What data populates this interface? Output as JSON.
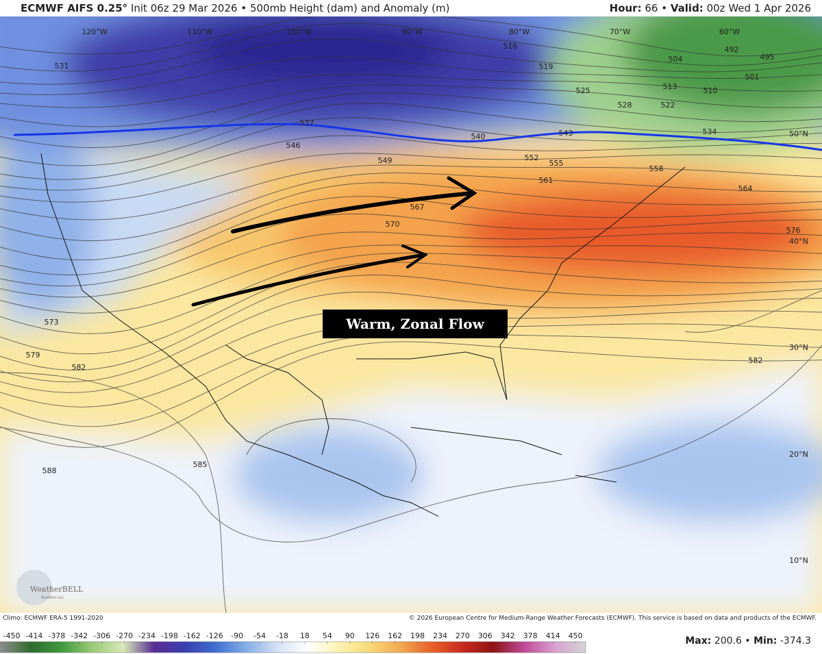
{
  "header": {
    "model": "ECMWF AIFS 0.25°",
    "init": "Init 06z 29 Mar 2026",
    "separator": "•",
    "product": "500mb Height (dam) and Anomaly (m)",
    "hour_label": "Hour:",
    "hour": 66,
    "valid_label": "Valid:",
    "valid": "00z Wed 1 Apr 2026"
  },
  "map": {
    "longitude_labels": [
      "120°W",
      "110°W",
      "100°W",
      "90°W",
      "80°W",
      "70°W",
      "60°W"
    ],
    "latitude_labels": [
      "50°N",
      "40°N",
      "30°N",
      "20°N",
      "10°N"
    ],
    "contour_labels": [
      531,
      537,
      546,
      549,
      540,
      543,
      552,
      555,
      561,
      558,
      564,
      567,
      570,
      576,
      573,
      579,
      582,
      582,
      585,
      588,
      516,
      519,
      525,
      528,
      522,
      534,
      513,
      510,
      504,
      501,
      492,
      495
    ],
    "annotation": "Warm, Zonal Flow",
    "logo": "WeatherBELL",
    "logo_sub": "Analytics LLC"
  },
  "footer": {
    "climo": "Climo: ECMWF ERA-5 1991-2020",
    "copyright": "© 2026 European Centre for Medium-Range Weather Forecasts (ECMWF). This service is based on data and products of the ECMWF.",
    "max_label": "Max:",
    "max": 200.6,
    "min_label": "Min:",
    "min": -374.3
  },
  "colorbar": {
    "ticks": [
      -450,
      -414,
      -378,
      -342,
      -306,
      -270,
      -234,
      -198,
      -162,
      -126,
      -90,
      -54,
      -18,
      18,
      54,
      90,
      126,
      162,
      198,
      234,
      270,
      306,
      342,
      378,
      414,
      450
    ],
    "colors": [
      "#8c8c8c",
      "#2f6b2f",
      "#3f9a3f",
      "#9ccb78",
      "#d8e8b8",
      "#5a2c94",
      "#3a3eb0",
      "#3f6fd0",
      "#86aee8",
      "#d6e2f6",
      "#ffffff",
      "#fff3b0",
      "#f8d878",
      "#f3aa50",
      "#e8622a",
      "#c92a1e",
      "#8e1414",
      "#c04a98",
      "#d8a0d0",
      "#d4d4d4"
    ]
  }
}
